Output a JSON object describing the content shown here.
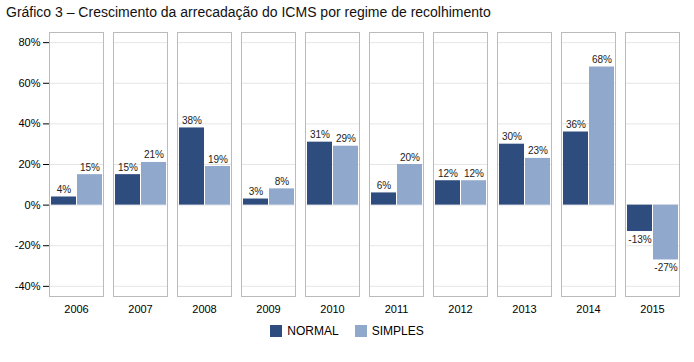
{
  "chart_data": {
    "type": "bar",
    "title": "Gráfico 3 – Crescimento da arrecadação do ICMS por regime de recolhimento",
    "categories": [
      "2006",
      "2007",
      "2008",
      "2009",
      "2010",
      "2011",
      "2012",
      "2013",
      "2014",
      "2015"
    ],
    "series": [
      {
        "name": "NORMAL",
        "color": "#2E4C7E",
        "values": [
          4,
          15,
          38,
          3,
          31,
          6,
          12,
          30,
          36,
          -13
        ],
        "value_labels": [
          "4%",
          "15%",
          "38%",
          "3%",
          "31%",
          "6%",
          "12%",
          "30%",
          "36%",
          "-13%"
        ]
      },
      {
        "name": "SIMPLES",
        "color": "#8FA8CC",
        "values": [
          15,
          21,
          19,
          8,
          29,
          20,
          12,
          23,
          68,
          -27
        ],
        "value_labels": [
          "15%",
          "21%",
          "19%",
          "8%",
          "29%",
          "20%",
          "12%",
          "23%",
          "68%",
          "-27%"
        ]
      }
    ],
    "ylim": [
      -45,
      85
    ],
    "yticks": [
      {
        "value": -40,
        "label": "-40%"
      },
      {
        "value": -20,
        "label": "-20%"
      },
      {
        "value": 0,
        "label": "0%"
      },
      {
        "value": 20,
        "label": "20%"
      },
      {
        "value": 40,
        "label": "40%"
      },
      {
        "value": 60,
        "label": "60%"
      },
      {
        "value": 80,
        "label": "80%"
      }
    ],
    "grid": true,
    "legend": "bottom",
    "data_labels": true
  }
}
